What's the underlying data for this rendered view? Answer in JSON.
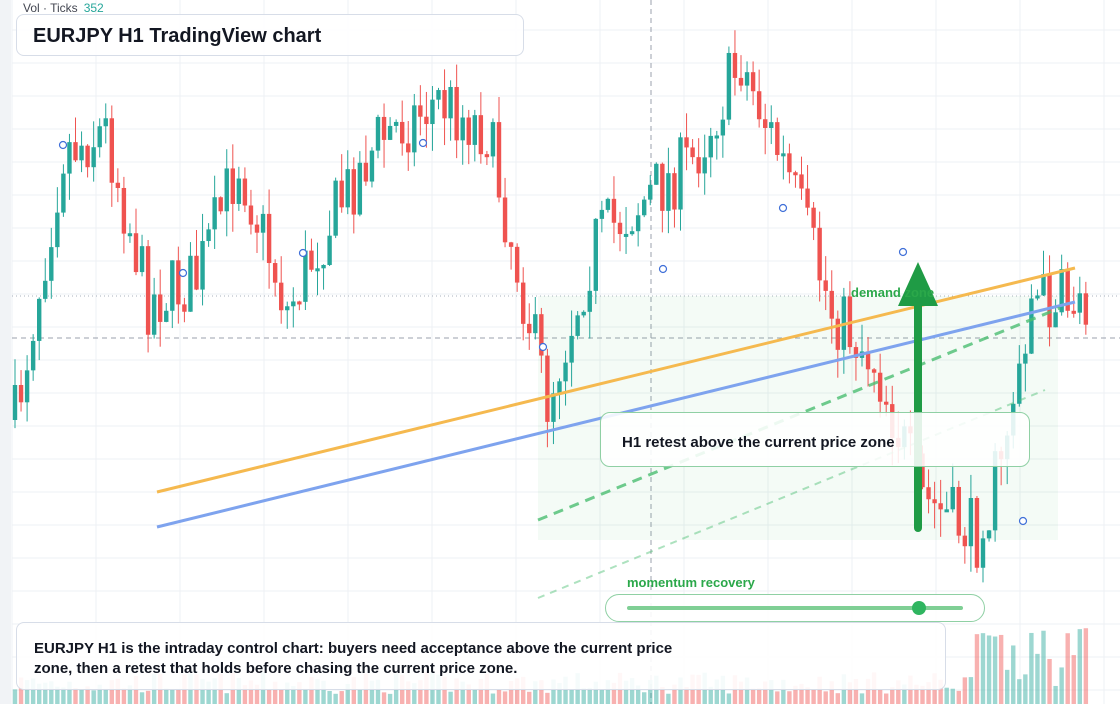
{
  "header": {
    "volume_label": "Vol · Ticks",
    "volume_value": "352"
  },
  "title": "EURJPY H1 TradingView chart",
  "callout": {
    "text": "H1 retest above the current price zone"
  },
  "zone": {
    "label": "demand zone"
  },
  "momentum": {
    "label": "momentum recovery",
    "level": 0.87
  },
  "note": {
    "text": "EURJPY H1 is the intraday control chart: buyers need acceptance above the current price zone, then a retest that holds before chasing the current price zone."
  },
  "colors": {
    "up": "#26a69a",
    "down": "#ef5350",
    "accent_green": "#2ba84a",
    "trend_orange": "#f5b94f",
    "trend_blue": "#7ea3ee"
  },
  "chart_data": {
    "type": "candlestick",
    "symbol": "EURJPY",
    "timeframe": "H1",
    "bars": 120,
    "seed": 7,
    "grid": true,
    "volume": true
  }
}
